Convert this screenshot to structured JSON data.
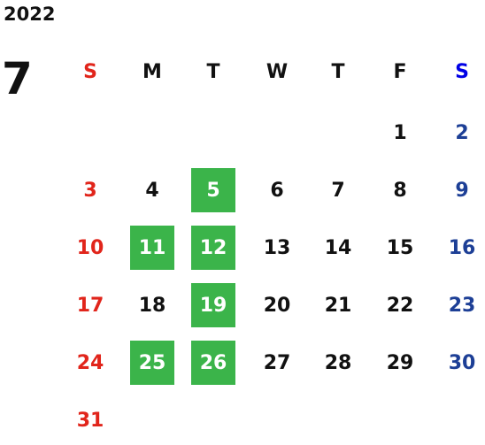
{
  "year": "2022",
  "month": "7",
  "weekdays": [
    "S",
    "M",
    "T",
    "W",
    "T",
    "F",
    "S"
  ],
  "weeks": [
    [
      null,
      null,
      null,
      null,
      null,
      {
        "day": 1
      },
      {
        "day": 2
      }
    ],
    [
      {
        "day": 3
      },
      {
        "day": 4
      },
      {
        "day": 5,
        "marked": true
      },
      {
        "day": 6
      },
      {
        "day": 7
      },
      {
        "day": 8
      },
      {
        "day": 9
      }
    ],
    [
      {
        "day": 10
      },
      {
        "day": 11,
        "marked": true
      },
      {
        "day": 12,
        "marked": true
      },
      {
        "day": 13
      },
      {
        "day": 14
      },
      {
        "day": 15
      },
      {
        "day": 16
      }
    ],
    [
      {
        "day": 17
      },
      {
        "day": 18
      },
      {
        "day": 19,
        "marked": true
      },
      {
        "day": 20
      },
      {
        "day": 21
      },
      {
        "day": 22
      },
      {
        "day": 23
      }
    ],
    [
      {
        "day": 24
      },
      {
        "day": 25,
        "marked": true
      },
      {
        "day": 26,
        "marked": true
      },
      {
        "day": 27
      },
      {
        "day": 28
      },
      {
        "day": 29
      },
      {
        "day": 30
      }
    ],
    [
      {
        "day": 31
      },
      null,
      null,
      null,
      null,
      null,
      null
    ]
  ]
}
